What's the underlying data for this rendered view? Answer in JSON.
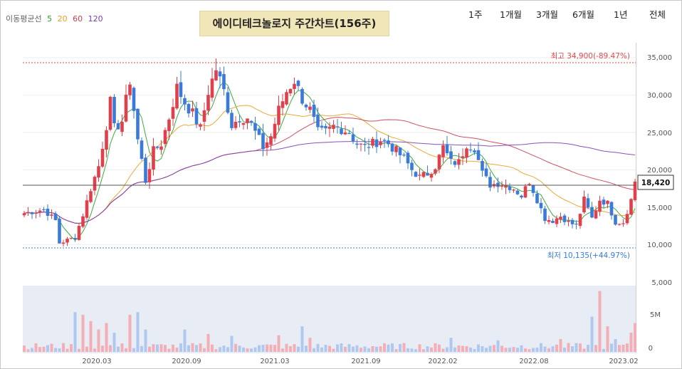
{
  "ma_legend": {
    "label": "이동평균선",
    "items": [
      {
        "name": "5",
        "color": "#2aa02a"
      },
      {
        "name": "20",
        "color": "#e6a020"
      },
      {
        "name": "60",
        "color": "#c83c50"
      },
      {
        "name": "120",
        "color": "#7a40b0"
      }
    ]
  },
  "title": "에이디테크놀로지 주간차트(156주)",
  "periods": [
    "1주",
    "1개월",
    "3개월",
    "6개월",
    "1년",
    "전체"
  ],
  "chart_data": {
    "type": "candlestick",
    "x_ticks": [
      "2020.03",
      "2020.09",
      "2021.03",
      "2021.09",
      "2022.02",
      "2022.08",
      "2023.02"
    ],
    "y_ticks": [
      "35,000",
      "30,000",
      "25,000",
      "20,000",
      "15,000",
      "10,000"
    ],
    "ylim": [
      9500,
      36500
    ],
    "volume_ticks": [
      "5,000",
      "5M",
      "0"
    ],
    "max_label": "최고 34,900(-89.47%)",
    "min_label": "최저 10,135(+44.97%)",
    "max_value": 34900,
    "min_value": 10135,
    "current_value": 18420,
    "current_label": "18,420",
    "up_color": "#e0404c",
    "down_color": "#3a7ad8",
    "close_anchors": [
      [
        0,
        14200
      ],
      [
        5,
        14700
      ],
      [
        8,
        13200
      ],
      [
        9,
        10200
      ],
      [
        13,
        11000
      ],
      [
        15,
        14000
      ],
      [
        17,
        17500
      ],
      [
        19,
        20500
      ],
      [
        21,
        26000
      ],
      [
        22,
        29000
      ],
      [
        23,
        25500
      ],
      [
        25,
        26500
      ],
      [
        27,
        32000
      ],
      [
        29,
        24000
      ],
      [
        31,
        18500
      ],
      [
        33,
        22500
      ],
      [
        35,
        23500
      ],
      [
        37,
        27000
      ],
      [
        39,
        31000
      ],
      [
        41,
        29000
      ],
      [
        43,
        27500
      ],
      [
        45,
        25500
      ],
      [
        47,
        30500
      ],
      [
        49,
        33500
      ],
      [
        51,
        30500
      ],
      [
        53,
        26000
      ],
      [
        55,
        27000
      ],
      [
        57,
        27000
      ],
      [
        59,
        25000
      ],
      [
        61,
        23000
      ],
      [
        63,
        24500
      ],
      [
        65,
        28000
      ],
      [
        67,
        30500
      ],
      [
        69,
        32000
      ],
      [
        71,
        29500
      ],
      [
        73,
        28000
      ],
      [
        75,
        25000
      ],
      [
        77,
        25000
      ],
      [
        79,
        25800
      ],
      [
        81,
        25500
      ],
      [
        83,
        25000
      ],
      [
        85,
        23500
      ],
      [
        87,
        23000
      ],
      [
        89,
        23500
      ],
      [
        91,
        24000
      ],
      [
        93,
        23500
      ],
      [
        95,
        22500
      ],
      [
        97,
        21500
      ],
      [
        99,
        20000
      ],
      [
        101,
        19000
      ],
      [
        103,
        19500
      ],
      [
        105,
        20500
      ],
      [
        107,
        23000
      ],
      [
        109,
        21000
      ],
      [
        111,
        21000
      ],
      [
        113,
        23500
      ],
      [
        115,
        23000
      ],
      [
        117,
        19500
      ],
      [
        119,
        18000
      ],
      [
        121,
        18200
      ],
      [
        123,
        18000
      ],
      [
        125,
        17500
      ],
      [
        127,
        16500
      ],
      [
        129,
        18500
      ],
      [
        131,
        16000
      ],
      [
        133,
        13500
      ],
      [
        135,
        13200
      ],
      [
        137,
        13800
      ],
      [
        139,
        13000
      ],
      [
        141,
        12500
      ],
      [
        143,
        16000
      ],
      [
        145,
        13500
      ],
      [
        147,
        16000
      ],
      [
        149,
        15500
      ],
      [
        151,
        13000
      ],
      [
        153,
        13000
      ],
      [
        155,
        16000
      ],
      [
        156,
        18420
      ]
    ]
  }
}
